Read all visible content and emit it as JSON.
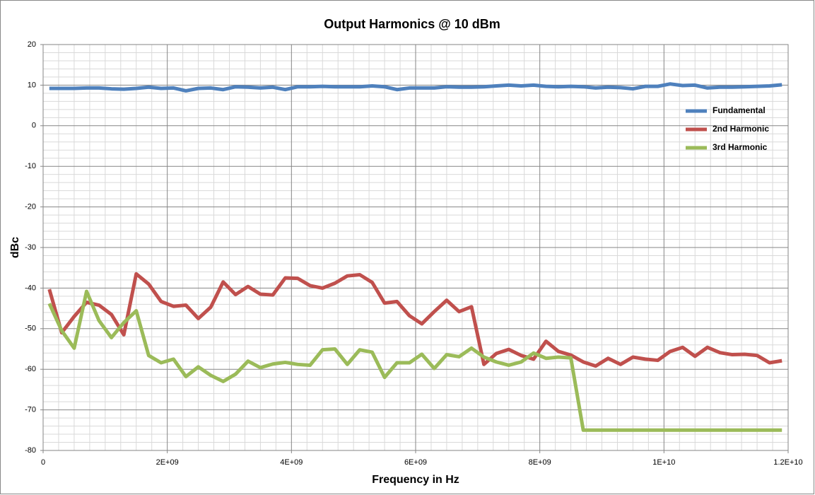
{
  "chart_data": {
    "type": "line",
    "title": "Output Harmonics @ 10 dBm",
    "xlabel": "Frequency in Hz",
    "ylabel": "dBc",
    "x": [
      100000000.0,
      300000000.0,
      500000000.0,
      700000000.0,
      900000000.0,
      1100000000.0,
      1300000000.0,
      1500000000.0,
      1700000000.0,
      1900000000.0,
      2100000000.0,
      2300000000.0,
      2500000000.0,
      2700000000.0,
      2900000000.0,
      3100000000.0,
      3300000000.0,
      3500000000.0,
      3700000000.0,
      3900000000.0,
      4100000000.0,
      4300000000.0,
      4500000000.0,
      4700000000.0,
      4900000000.0,
      5100000000.0,
      5300000000.0,
      5500000000.0,
      5700000000.0,
      5900000000.0,
      6100000000.0,
      6300000000.0,
      6500000000.0,
      6700000000.0,
      6900000000.0,
      7100000000.0,
      7300000000.0,
      7500000000.0,
      7700000000.0,
      7900000000.0,
      8100000000.0,
      8300000000.0,
      8500000000.0,
      8700000000.0,
      8900000000.0,
      9100000000.0,
      9300000000.0,
      9500000000.0,
      9700000000.0,
      9900000000.0,
      10100000000.0,
      10300000000.0,
      10500000000.0,
      10700000000.0,
      10900000000.0,
      11100000000.0,
      11300000000.0,
      11500000000.0,
      11700000000.0,
      11900000000.0
    ],
    "series": [
      {
        "name": "Fundamental",
        "color": "#4f81bd",
        "values": [
          9.2,
          9.2,
          9.2,
          9.3,
          9.3,
          9.1,
          9.0,
          9.2,
          9.5,
          9.2,
          9.3,
          8.6,
          9.2,
          9.3,
          8.9,
          9.6,
          9.5,
          9.3,
          9.5,
          8.9,
          9.6,
          9.6,
          9.7,
          9.6,
          9.6,
          9.6,
          9.8,
          9.6,
          8.9,
          9.3,
          9.3,
          9.3,
          9.6,
          9.5,
          9.5,
          9.6,
          9.8,
          10,
          9.8,
          10,
          9.7,
          9.6,
          9.7,
          9.6,
          9.3,
          9.5,
          9.4,
          9.1,
          9.7,
          9.7,
          10.3,
          9.9,
          10,
          9.3,
          9.5,
          9.5,
          9.6,
          9.7,
          9.8,
          10.1
        ]
      },
      {
        "name": "2nd Harmonic",
        "color": "#c0504d",
        "values": [
          -40.3,
          -51,
          -47,
          -43.5,
          -44.2,
          -46.5,
          -51.5,
          -36.5,
          -39,
          -43.3,
          -44.5,
          -44.2,
          -47.5,
          -44.7,
          -38.5,
          -41.6,
          -39.6,
          -41.5,
          -41.7,
          -37.5,
          -37.6,
          -39.4,
          -40,
          -38.8,
          -37,
          -36.7,
          -38.6,
          -43.7,
          -43.3,
          -46.8,
          -48.8,
          -45.8,
          -43,
          -45.8,
          -44.6,
          -58.8,
          -56.1,
          -55.1,
          -56.6,
          -57.5,
          -53.1,
          -55.6,
          -56.5,
          -58.2,
          -59.2,
          -57.3,
          -58.8,
          -57,
          -57.5,
          -57.8,
          -55.6,
          -54.6,
          -56.8,
          -54.6,
          -55.9,
          -56.4,
          -56.3,
          -56.6,
          -58.4,
          -57.9
        ]
      },
      {
        "name": "3rd Harmonic",
        "color": "#9bbb59",
        "values": [
          -43.8,
          -50.5,
          -54.8,
          -40.8,
          -48,
          -52.2,
          -48.5,
          -45.6,
          -56.6,
          -58.4,
          -57.5,
          -61.8,
          -59.4,
          -61.5,
          -63,
          -61.2,
          -58,
          -59.6,
          -58.7,
          -58.3,
          -58.8,
          -59,
          -55.2,
          -55,
          -58.8,
          -55.2,
          -55.8,
          -62,
          -58.4,
          -58.4,
          -56.3,
          -59.8,
          -56.4,
          -56.9,
          -54.8,
          -57,
          -58.2,
          -59,
          -58.2,
          -56,
          -57.3,
          -57,
          -57.2,
          -75,
          -75,
          -75,
          -75,
          -75,
          -75,
          -75,
          -75,
          -75,
          -75,
          -75,
          -75,
          -75,
          -75,
          -75,
          -75,
          -75
        ]
      }
    ],
    "xlim": [
      0,
      12000000000
    ],
    "xticks": [
      0,
      {
        "value": 2000000000,
        "label": "2E+09"
      },
      {
        "value": 4000000000,
        "label": "4E+09"
      },
      {
        "value": 6000000000,
        "label": "6E+09"
      },
      {
        "value": 8000000000,
        "label": "8E+09"
      },
      {
        "value": 10000000000,
        "label": "1E+10"
      },
      {
        "value": 12000000000,
        "label": "1.2E+10"
      }
    ],
    "ylim": [
      -80,
      20
    ],
    "yticks": [
      -80,
      -70,
      -60,
      -50,
      -40,
      -30,
      -20,
      -10,
      0,
      10,
      20
    ],
    "grid": true,
    "legend": "upper right"
  }
}
